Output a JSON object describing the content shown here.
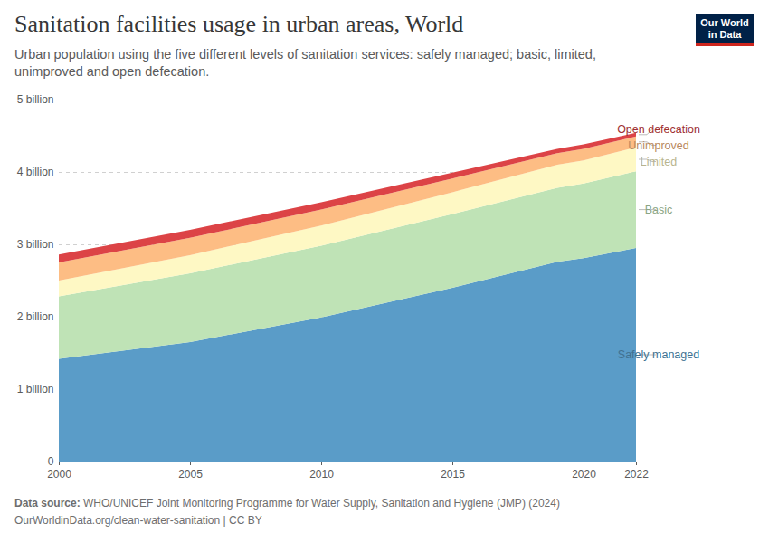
{
  "chart_data": {
    "type": "area",
    "title": "Sanitation facilities usage in urban areas, World",
    "subtitle": "Urban population using the five different levels of sanitation services: safely managed; basic, limited, unimproved and open defecation.",
    "logo": [
      "Our World",
      "in Data"
    ],
    "source_label": "Data source:",
    "source": "WHO/UNICEF Joint Monitoring Programme for Water Supply, Sanitation and Hygiene (JMP) (2024)",
    "note": "OurWorldinData.org/clean-water-sanitation | CC BY",
    "stacked": true,
    "grid": true,
    "x": [
      2000,
      2005,
      2010,
      2015,
      2019,
      2020,
      2022
    ],
    "xlim": [
      2000,
      2022
    ],
    "xticks": [
      2000,
      2005,
      2010,
      2015,
      2020,
      2022
    ],
    "ylim": [
      0,
      5
    ],
    "yticks": [
      0,
      {
        "value": 1,
        "label": "1 billion"
      },
      {
        "value": 2,
        "label": "2 billion"
      },
      {
        "value": 3,
        "label": "3 billion"
      },
      {
        "value": 4,
        "label": "4 billion"
      },
      {
        "value": 5,
        "label": "5 billion"
      }
    ],
    "series": [
      {
        "name": "Safely managed",
        "color": "#5a9cc8",
        "values": [
          1.42,
          1.65,
          1.99,
          2.4,
          2.76,
          2.81,
          2.95
        ]
      },
      {
        "name": "Basic",
        "color": "#bfe3b6",
        "values": [
          0.86,
          0.95,
          0.99,
          1.02,
          1.02,
          1.03,
          1.06
        ]
      },
      {
        "name": "Limited",
        "color": "#fef8c4",
        "values": [
          0.22,
          0.25,
          0.28,
          0.3,
          0.32,
          0.32,
          0.33
        ]
      },
      {
        "name": "Unimproved",
        "color": "#fdbd84",
        "values": [
          0.25,
          0.24,
          0.22,
          0.19,
          0.16,
          0.16,
          0.15
        ]
      },
      {
        "name": "Open defecation",
        "color": "#dc4346",
        "values": [
          0.11,
          0.11,
          0.1,
          0.08,
          0.06,
          0.06,
          0.05
        ]
      }
    ]
  }
}
